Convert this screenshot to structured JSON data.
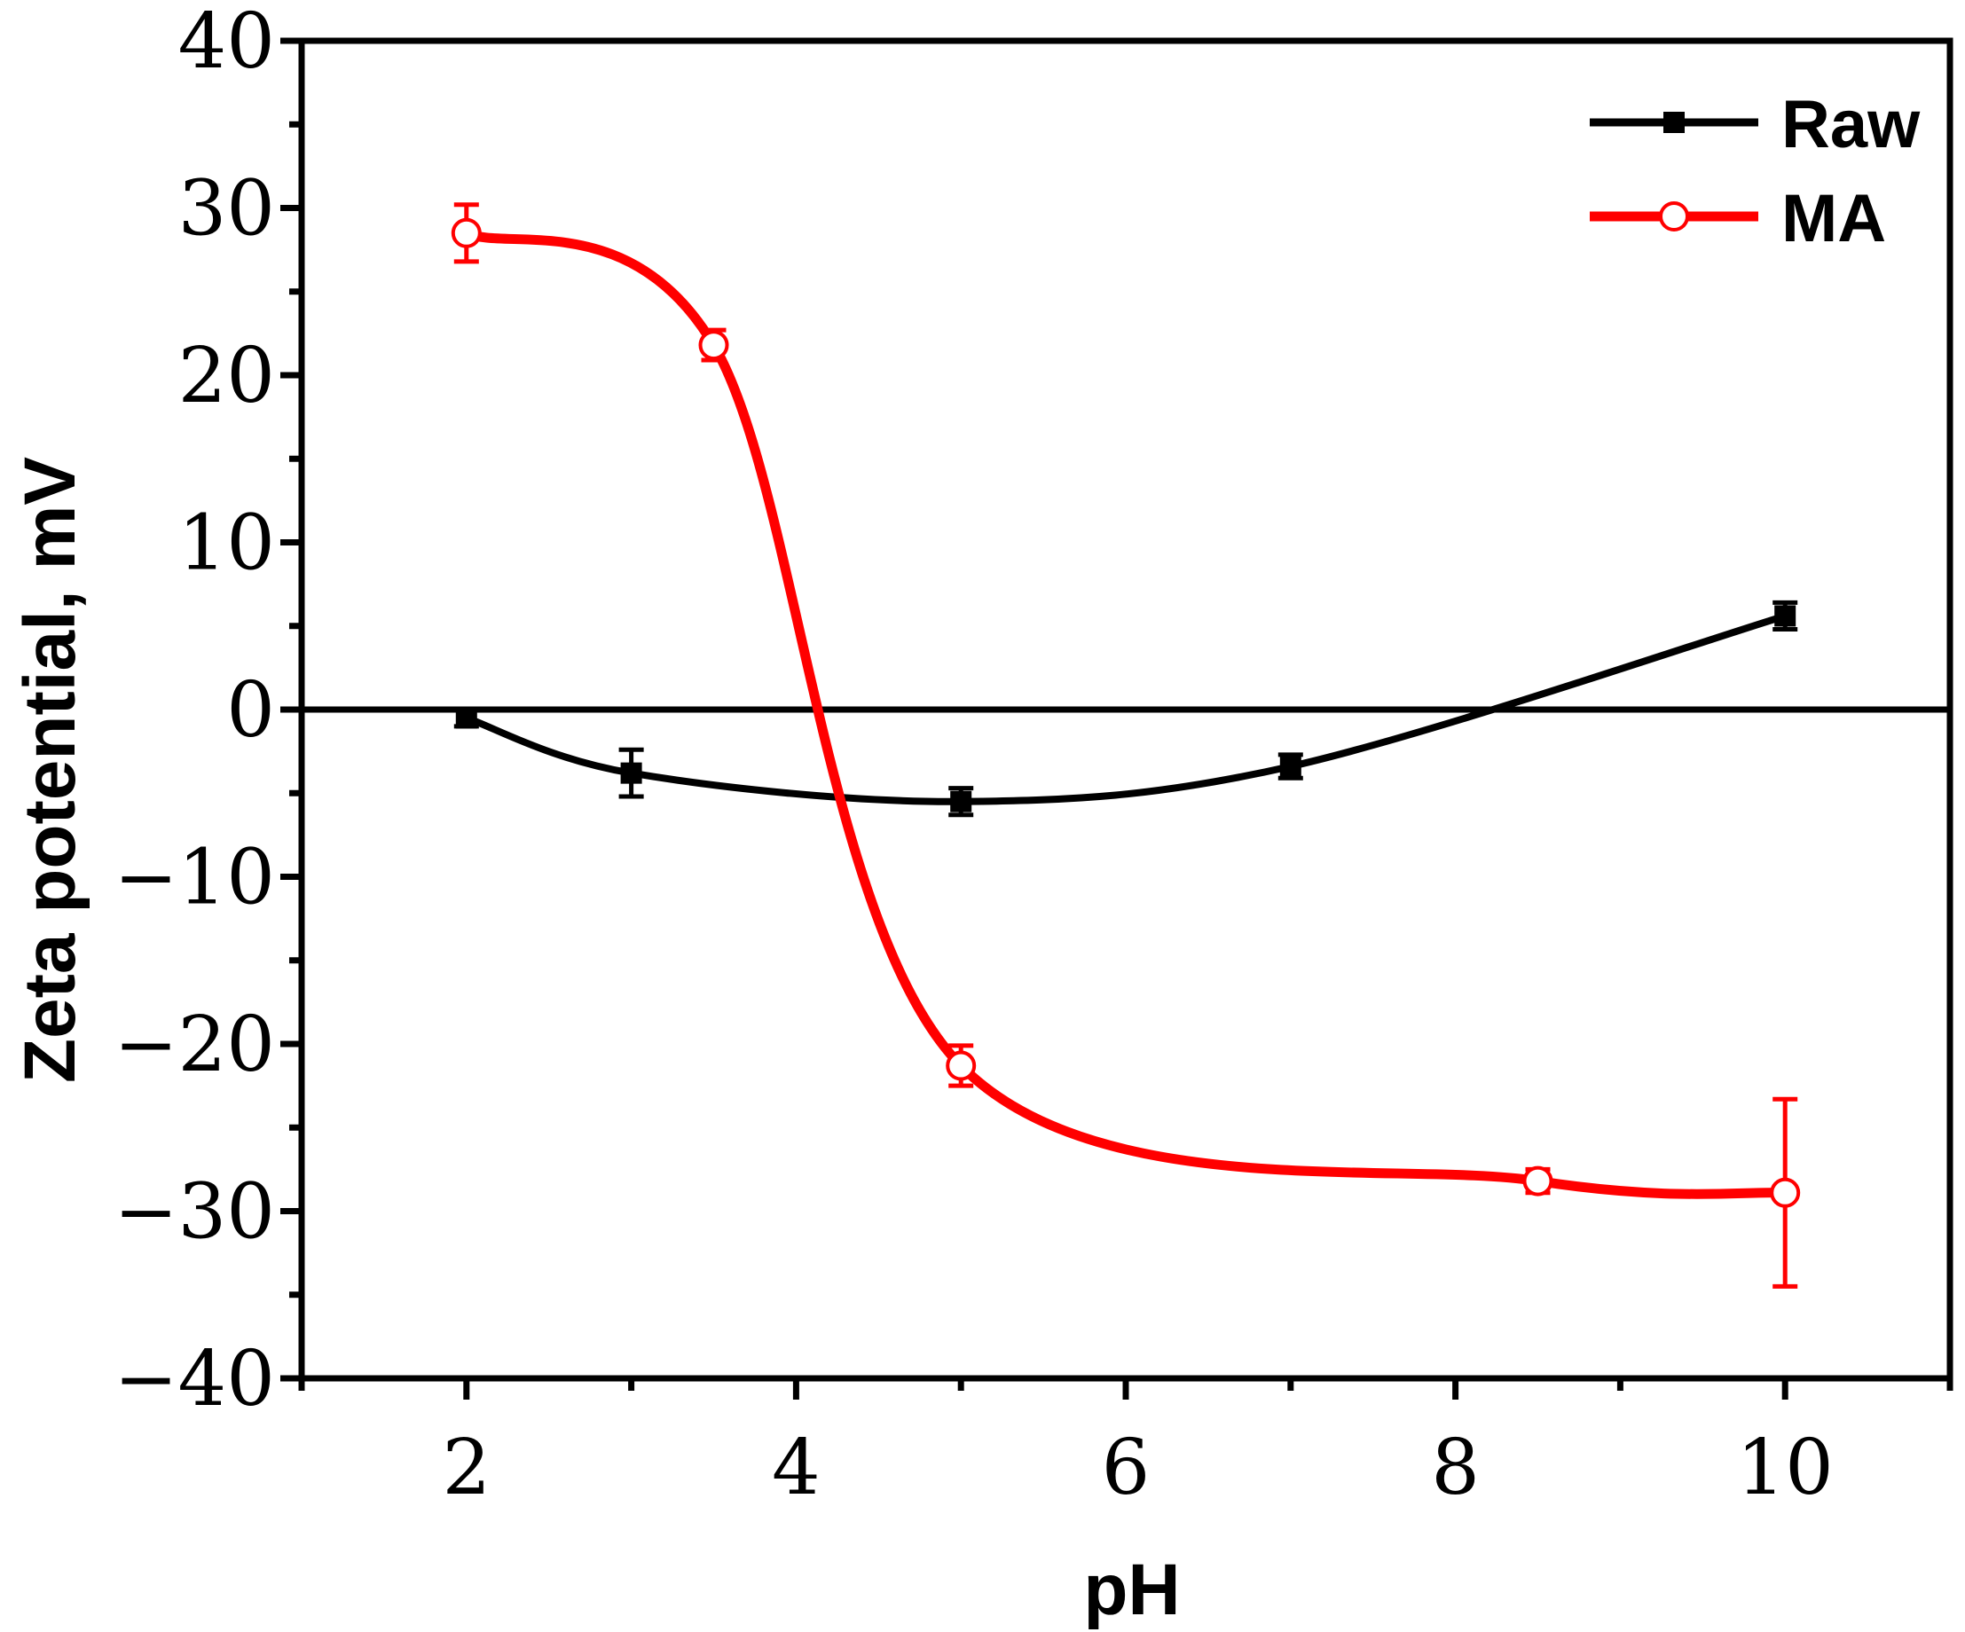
{
  "chart_data": {
    "type": "line",
    "title": "",
    "xlabel": "pH",
    "ylabel": "Zeta potential, mV",
    "xlim": [
      1,
      11
    ],
    "ylim": [
      -40,
      40
    ],
    "xticks": [
      2,
      4,
      6,
      8,
      10
    ],
    "yticks": [
      40,
      30,
      20,
      10,
      0,
      -10,
      -20,
      -30,
      -40
    ],
    "xtick_labels": [
      "2",
      "4",
      "6",
      "8",
      "10"
    ],
    "ytick_labels": [
      "40",
      "30",
      "20",
      "10",
      "0",
      "−10",
      "−20",
      "−30",
      "−40"
    ],
    "zero_line": true,
    "legend_position": "top-right",
    "series": [
      {
        "name": "Raw",
        "color": "#000000",
        "marker": "filled-square",
        "x": [
          2,
          3,
          5,
          7,
          10
        ],
        "y": [
          -0.5,
          -3.8,
          -5.5,
          -3.4,
          5.6
        ],
        "err": [
          0.5,
          1.4,
          0.8,
          0.7,
          0.8
        ]
      },
      {
        "name": "MA",
        "color": "#ff0000",
        "marker": "open-circle",
        "x": [
          2,
          3.5,
          5,
          8.5,
          10
        ],
        "y": [
          28.5,
          21.8,
          -21.3,
          -28.2,
          -28.9
        ],
        "err": [
          1.7,
          0.9,
          1.2,
          0.7,
          5.6
        ]
      }
    ]
  }
}
